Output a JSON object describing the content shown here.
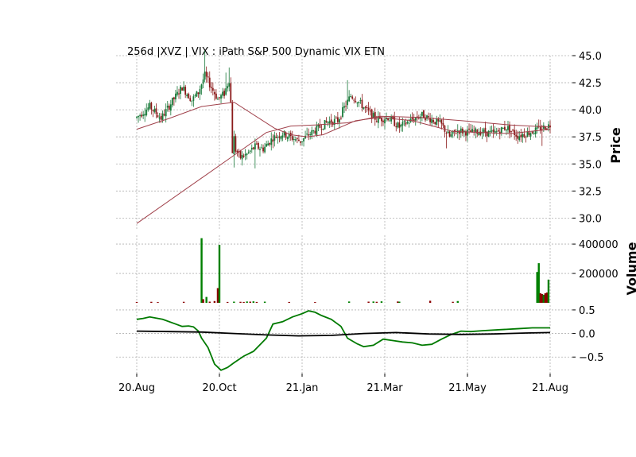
{
  "chart_data": {
    "type": "candlestick",
    "title": "256d |XVZ | VIX : iPath S&P 500 Dynamic VIX ETN",
    "x_tick_labels": [
      "20.Aug",
      "20.Oct",
      "21.Jan",
      "21.Mar",
      "21.May",
      "21.Aug"
    ],
    "panels": {
      "price": {
        "ylabel": "Price",
        "ylim": [
          29.0,
          45.0
        ],
        "y_ticks": [
          30.0,
          32.5,
          35.0,
          37.5,
          40.0,
          42.5,
          45.0
        ],
        "y_tick_labels": [
          "30.0",
          "32.5",
          "35.0",
          "37.5",
          "40.0",
          "42.5",
          "45.0"
        ],
        "grid": true,
        "up_color": "#1a7a3a",
        "down_color": "#8b1a1a",
        "ma_color": "#a0404a",
        "ohlc_approx": [
          [
            0,
            39.3
          ],
          [
            8,
            40.3
          ],
          [
            15,
            39.2
          ],
          [
            22,
            40.8
          ],
          [
            28,
            42.1
          ],
          [
            34,
            40.9
          ],
          [
            38,
            41.6
          ],
          [
            42,
            43.2
          ],
          [
            47,
            41.8
          ],
          [
            50,
            41.0
          ],
          [
            54,
            41.5
          ],
          [
            57,
            42.8
          ],
          [
            59,
            38.5
          ],
          [
            61,
            36.3
          ],
          [
            64,
            35.6
          ],
          [
            68,
            35.9
          ],
          [
            73,
            36.6
          ],
          [
            78,
            36.4
          ],
          [
            84,
            37.4
          ],
          [
            90,
            37.8
          ],
          [
            96,
            37.4
          ],
          [
            101,
            37.1
          ],
          [
            106,
            37.7
          ],
          [
            112,
            38.3
          ],
          [
            118,
            38.9
          ],
          [
            124,
            39.0
          ],
          [
            128,
            40.2
          ],
          [
            132,
            41.3
          ],
          [
            136,
            40.9
          ],
          [
            142,
            39.9
          ],
          [
            148,
            39.1
          ],
          [
            155,
            39.3
          ],
          [
            162,
            38.4
          ],
          [
            170,
            39.1
          ],
          [
            176,
            39.5
          ],
          [
            182,
            39.1
          ],
          [
            188,
            38.6
          ],
          [
            193,
            37.5
          ],
          [
            198,
            38.1
          ],
          [
            205,
            37.9
          ],
          [
            212,
            38.0
          ],
          [
            220,
            37.8
          ],
          [
            228,
            38.4
          ],
          [
            235,
            37.6
          ],
          [
            242,
            37.9
          ],
          [
            248,
            38.2
          ],
          [
            255,
            38.6
          ]
        ],
        "moving_averages": [
          {
            "points": [
              [
                0,
                38.2
              ],
              [
                20,
                39.2
              ],
              [
                40,
                40.3
              ],
              [
                60,
                40.7
              ],
              [
                85,
                38.3
              ],
              [
                95,
                37.7
              ],
              [
                105,
                37.5
              ],
              [
                115,
                37.7
              ],
              [
                135,
                39.0
              ],
              [
                150,
                39.3
              ],
              [
                170,
                39.0
              ],
              [
                195,
                38.0
              ],
              [
                230,
                37.8
              ],
              [
                255,
                38.2
              ]
            ]
          },
          {
            "points": [
              [
                0,
                29.5
              ],
              [
                60,
                35.8
              ],
              [
                80,
                37.9
              ],
              [
                95,
                38.5
              ],
              [
                110,
                38.6
              ],
              [
                130,
                38.8
              ],
              [
                150,
                39.4
              ],
              [
                175,
                39.3
              ],
              [
                200,
                39.0
              ],
              [
                230,
                38.6
              ],
              [
                255,
                38.4
              ]
            ]
          }
        ]
      },
      "volume": {
        "ylabel": "Volume",
        "ylim": [
          0,
          460000
        ],
        "y_ticks": [
          200000,
          400000
        ],
        "y_tick_labels": [
          "200000",
          "400000"
        ],
        "bars": [
          [
            0,
            6000,
            "down"
          ],
          [
            9,
            7000,
            "down"
          ],
          [
            13,
            5000,
            "down"
          ],
          [
            29,
            7000,
            "down"
          ],
          [
            40,
            440000,
            "up"
          ],
          [
            41,
            25000,
            "down"
          ],
          [
            43,
            40000,
            "up"
          ],
          [
            45,
            8000,
            "down"
          ],
          [
            48,
            12000,
            "down"
          ],
          [
            50,
            100000,
            "down"
          ],
          [
            51,
            395000,
            "up"
          ],
          [
            56,
            6000,
            "down"
          ],
          [
            60,
            8000,
            "up"
          ],
          [
            64,
            7000,
            "down"
          ],
          [
            66,
            6000,
            "down"
          ],
          [
            68,
            9000,
            "up"
          ],
          [
            70,
            8000,
            "down"
          ],
          [
            72,
            10000,
            "up"
          ],
          [
            74,
            6000,
            "down"
          ],
          [
            79,
            8000,
            "up"
          ],
          [
            94,
            6000,
            "down"
          ],
          [
            110,
            5000,
            "down"
          ],
          [
            131,
            9000,
            "up"
          ],
          [
            143,
            8000,
            "down"
          ],
          [
            146,
            9000,
            "up"
          ],
          [
            148,
            7000,
            "down"
          ],
          [
            151,
            10000,
            "up"
          ],
          [
            161,
            9000,
            "down"
          ],
          [
            162,
            8000,
            "up"
          ],
          [
            181,
            14000,
            "down"
          ],
          [
            195,
            7000,
            "down"
          ],
          [
            198,
            12000,
            "up"
          ],
          [
            247,
            210000,
            "up"
          ],
          [
            248,
            270000,
            "up"
          ],
          [
            249,
            65000,
            "down"
          ],
          [
            250,
            60000,
            "down"
          ],
          [
            251,
            55000,
            "up"
          ],
          [
            252,
            65000,
            "down"
          ],
          [
            253,
            70000,
            "down"
          ],
          [
            254,
            158000,
            "up"
          ]
        ]
      },
      "indicator": {
        "ylim": [
          -0.85,
          0.6
        ],
        "y_ticks": [
          -0.5,
          0.0,
          0.5
        ],
        "y_tick_labels": [
          "−0.5",
          "0.0",
          "0.5"
        ],
        "series": [
          {
            "color": "#007a00",
            "points": [
              [
                0,
                0.3
              ],
              [
                4,
                0.32
              ],
              [
                8,
                0.35
              ],
              [
                16,
                0.3
              ],
              [
                24,
                0.2
              ],
              [
                28,
                0.15
              ],
              [
                32,
                0.16
              ],
              [
                35,
                0.14
              ],
              [
                38,
                0.05
              ],
              [
                40,
                -0.1
              ],
              [
                44,
                -0.3
              ],
              [
                48,
                -0.65
              ],
              [
                52,
                -0.78
              ],
              [
                56,
                -0.72
              ],
              [
                60,
                -0.62
              ],
              [
                66,
                -0.48
              ],
              [
                72,
                -0.38
              ],
              [
                80,
                -0.1
              ],
              [
                84,
                0.2
              ],
              [
                90,
                0.25
              ],
              [
                96,
                0.35
              ],
              [
                102,
                0.42
              ],
              [
                106,
                0.48
              ],
              [
                110,
                0.45
              ],
              [
                114,
                0.38
              ],
              [
                120,
                0.3
              ],
              [
                126,
                0.15
              ],
              [
                130,
                -0.1
              ],
              [
                136,
                -0.22
              ],
              [
                140,
                -0.28
              ],
              [
                146,
                -0.25
              ],
              [
                152,
                -0.12
              ],
              [
                158,
                -0.15
              ],
              [
                164,
                -0.18
              ],
              [
                170,
                -0.2
              ],
              [
                176,
                -0.25
              ],
              [
                182,
                -0.23
              ],
              [
                188,
                -0.12
              ],
              [
                194,
                -0.02
              ],
              [
                200,
                0.05
              ],
              [
                206,
                0.04
              ],
              [
                214,
                0.06
              ],
              [
                224,
                0.08
              ],
              [
                234,
                0.1
              ],
              [
                244,
                0.12
              ],
              [
                255,
                0.12
              ]
            ]
          },
          {
            "color": "#000000",
            "points": [
              [
                0,
                0.05
              ],
              [
                20,
                0.04
              ],
              [
                40,
                0.03
              ],
              [
                60,
                0.0
              ],
              [
                80,
                -0.03
              ],
              [
                100,
                -0.05
              ],
              [
                120,
                -0.04
              ],
              [
                140,
                0.0
              ],
              [
                160,
                0.02
              ],
              [
                180,
                -0.01
              ],
              [
                200,
                -0.02
              ],
              [
                220,
                -0.01
              ],
              [
                240,
                0.01
              ],
              [
                255,
                0.02
              ]
            ]
          }
        ]
      }
    }
  }
}
